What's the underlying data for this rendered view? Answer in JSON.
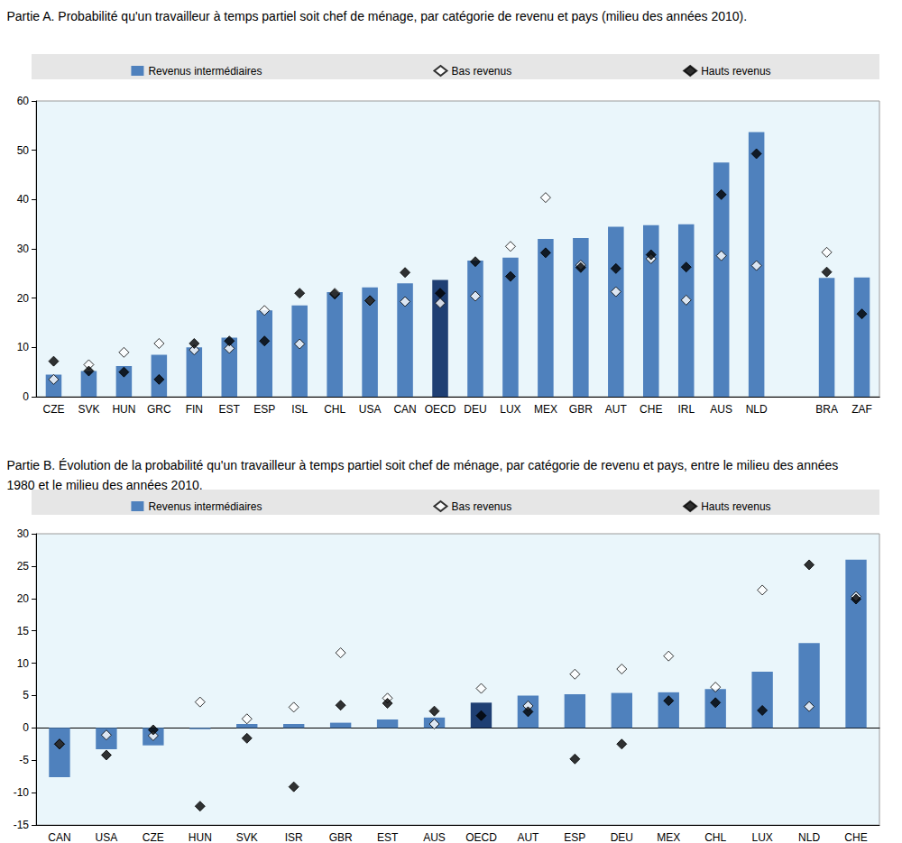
{
  "chart_data": [
    {
      "type": "bar",
      "title": "Partie A. Probabilité qu'un travailleur à temps partiel soit chef de ménage, par catégorie de revenu et pays (milieu des années 2010).",
      "categories": [
        "CZE",
        "SVK",
        "HUN",
        "GRC",
        "FIN",
        "EST",
        "ESP",
        "ISL",
        "CHL",
        "USA",
        "CAN",
        "OECD",
        "DEU",
        "LUX",
        "MEX",
        "GBR",
        "AUT",
        "CHE",
        "IRL",
        "AUS",
        "NLD",
        null,
        "BRA",
        "ZAF"
      ],
      "series": [
        {
          "name": "Revenus intermédiaires",
          "type": "bar",
          "color": "#4f81bd",
          "colors": [
            "#4f81bd",
            "#4f81bd",
            "#4f81bd",
            "#4f81bd",
            "#4f81bd",
            "#4f81bd",
            "#4f81bd",
            "#4f81bd",
            "#4f81bd",
            "#4f81bd",
            "#4f81bd",
            "#1f3f73",
            "#4f81bd",
            "#4f81bd",
            "#4f81bd",
            "#4f81bd",
            "#4f81bd",
            "#4f81bd",
            "#4f81bd",
            "#4f81bd",
            "#4f81bd",
            null,
            "#4f81bd",
            "#4f81bd"
          ],
          "values": [
            4.5,
            5.2,
            6.2,
            8.5,
            10,
            12,
            17.5,
            18.5,
            21.2,
            22.2,
            23,
            23.7,
            27.6,
            28.2,
            32,
            32.2,
            34.5,
            34.8,
            35,
            47.5,
            53.7,
            null,
            24.1,
            24.2
          ]
        },
        {
          "name": "Bas revenus",
          "type": "scatter",
          "marker": "open_diamond",
          "color": "#000000",
          "values": [
            3.5,
            6.5,
            9,
            10.8,
            9.5,
            9.8,
            17.5,
            10.7,
            21,
            19.5,
            19.3,
            19,
            20.4,
            30.5,
            40.4,
            26.7,
            21.3,
            28,
            19.6,
            28.6,
            26.6,
            null,
            29.3,
            null
          ]
        },
        {
          "name": "Hauts revenus",
          "type": "scatter",
          "marker": "diamond",
          "color": "#000000",
          "values": [
            7.2,
            5.2,
            5,
            3.5,
            10.8,
            11.3,
            11.3,
            21,
            20.8,
            19.5,
            25.2,
            21,
            27.4,
            24.4,
            29.2,
            26.2,
            26,
            28.8,
            26.3,
            41,
            49.3,
            null,
            25.3,
            16.8
          ]
        }
      ],
      "ylim": [
        0,
        60
      ],
      "yticks": [
        0,
        10,
        20,
        30,
        40,
        50,
        60
      ],
      "grid": false,
      "legend": "top"
    },
    {
      "type": "bar",
      "title": "Partie B. Évolution de la probabilité qu'un travailleur à temps partiel soit chef de ménage, par catégorie de revenu et pays, entre le milieu des années 1980 et le milieu des années 2010.",
      "categories": [
        "CAN",
        "USA",
        "CZE",
        "HUN",
        "SVK",
        "ISR",
        "GBR",
        "EST",
        "AUS",
        "OECD",
        "AUT",
        "ESP",
        "DEU",
        "MEX",
        "CHL",
        "LUX",
        "NLD",
        "CHE"
      ],
      "series": [
        {
          "name": "Revenus intermédiaires",
          "type": "bar",
          "color": "#4f81bd",
          "colors": [
            "#4f81bd",
            "#4f81bd",
            "#4f81bd",
            "#4f81bd",
            "#4f81bd",
            "#4f81bd",
            "#4f81bd",
            "#4f81bd",
            "#4f81bd",
            "#1f3f73",
            "#4f81bd",
            "#4f81bd",
            "#4f81bd",
            "#4f81bd",
            "#4f81bd",
            "#4f81bd",
            "#4f81bd",
            "#4f81bd"
          ],
          "values": [
            -7.6,
            -3.3,
            -2.7,
            -0.2,
            0.6,
            0.6,
            0.8,
            1.3,
            1.6,
            3.9,
            5,
            5.2,
            5.4,
            5.5,
            6,
            8.7,
            13.1,
            26
          ]
        },
        {
          "name": "Bas revenus",
          "type": "scatter",
          "marker": "open_diamond",
          "color": "#000000",
          "values": [
            -2.5,
            -1.1,
            -1.2,
            4,
            1.4,
            3.2,
            11.6,
            4.6,
            0.6,
            6.1,
            3.4,
            8.3,
            9.1,
            11.1,
            6.3,
            21.3,
            3.3,
            20.3
          ]
        },
        {
          "name": "Hauts revenus",
          "type": "scatter",
          "marker": "diamond",
          "color": "#000000",
          "values": [
            -2.5,
            -4.2,
            -0.3,
            -12.1,
            -1.6,
            -9.1,
            3.5,
            3.8,
            2.6,
            1.9,
            2.5,
            -4.8,
            -2.5,
            4.2,
            3.9,
            2.7,
            25.2,
            19.9
          ]
        }
      ],
      "ylim": [
        -15,
        30
      ],
      "yticks": [
        -15,
        -10,
        -5,
        0,
        5,
        10,
        15,
        20,
        25,
        30
      ],
      "grid": false,
      "legend": "top"
    }
  ]
}
